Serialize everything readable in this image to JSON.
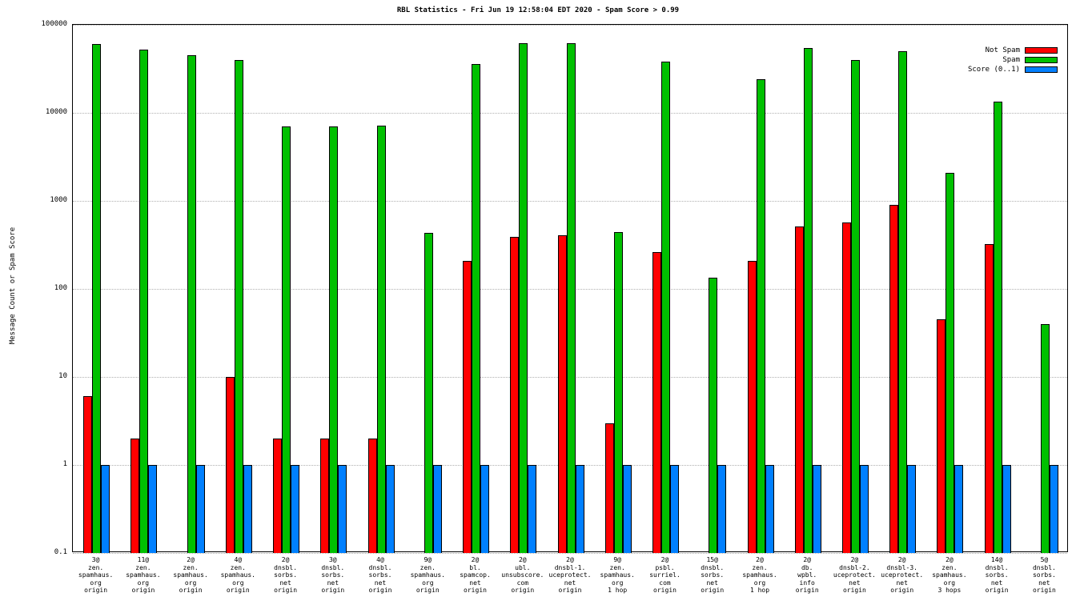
{
  "page": {
    "title": "RBL Statistics - Fri Jun 19 12:58:04 EDT 2020 - Spam Score > 0.99",
    "y_axis_label": "Message Count or Spam Score"
  },
  "chart_data": {
    "type": "bar",
    "title": "RBL Statistics - Fri Jun 19 12:58:04 EDT 2020 - Spam Score > 0.99",
    "xlabel": "",
    "ylabel": "Message Count or Spam Score",
    "y_scale": "log",
    "ylim": [
      0.1,
      100000
    ],
    "yticks": [
      "100000",
      "10000",
      "1000",
      "100",
      "10",
      "1",
      "0.1"
    ],
    "grid": "horizontal-dotted",
    "legend_position": "top-right",
    "categories": [
      [
        "3@",
        "zen.",
        "spamhaus.",
        "org",
        "origin"
      ],
      [
        "11@",
        "zen.",
        "spamhaus.",
        "org",
        "origin"
      ],
      [
        "2@",
        "zen.",
        "spamhaus.",
        "org",
        "origin"
      ],
      [
        "4@",
        "zen.",
        "spamhaus.",
        "org",
        "origin"
      ],
      [
        "2@",
        "dnsbl.",
        "sorbs.",
        "net",
        "origin"
      ],
      [
        "3@",
        "dnsbl.",
        "sorbs.",
        "net",
        "origin"
      ],
      [
        "4@",
        "dnsbl.",
        "sorbs.",
        "net",
        "origin"
      ],
      [
        "9@",
        "zen.",
        "spamhaus.",
        "org",
        "origin"
      ],
      [
        "2@",
        "bl.",
        "spamcop.",
        "net",
        "origin"
      ],
      [
        "2@",
        "ubl.",
        "unsubscore.",
        "com",
        "origin"
      ],
      [
        "2@",
        "dnsbl-1.",
        "uceprotect.",
        "net",
        "origin"
      ],
      [
        "9@",
        "zen.",
        "spamhaus.",
        "org",
        "1 hop"
      ],
      [
        "2@",
        "psbl.",
        "surriel.",
        "com",
        "origin"
      ],
      [
        "15@",
        "dnsbl.",
        "sorbs.",
        "net",
        "origin"
      ],
      [
        "2@",
        "zen.",
        "spamhaus.",
        "org",
        "1 hop"
      ],
      [
        "2@",
        "db.",
        "wpbl.",
        "info",
        "origin"
      ],
      [
        "2@",
        "dnsbl-2.",
        "uceprotect.",
        "net",
        "origin"
      ],
      [
        "2@",
        "dnsbl-3.",
        "uceprotect.",
        "net",
        "origin"
      ],
      [
        "2@",
        "zen.",
        "spamhaus.",
        "org",
        "3 hops"
      ],
      [
        "14@",
        "dnsbl.",
        "sorbs.",
        "net",
        "origin"
      ],
      [
        "5@",
        "dnsbl.",
        "sorbs.",
        "net",
        "origin"
      ]
    ],
    "series": [
      {
        "name": "Not Spam",
        "color": "#ff0000",
        "values": [
          6,
          2,
          null,
          10,
          2,
          2,
          2,
          null,
          210,
          390,
          410,
          3,
          260,
          null,
          210,
          510,
          570,
          900,
          45,
          320,
          null
        ]
      },
      {
        "name": "Spam",
        "color": "#00c000",
        "values": [
          60000,
          52000,
          45000,
          40000,
          7000,
          7000,
          7200,
          430,
          36000,
          62000,
          62000,
          440,
          38000,
          135,
          24000,
          54000,
          40000,
          50000,
          2100,
          13500,
          40
        ]
      },
      {
        "name": "Score (0..1)",
        "color": "#0080ff",
        "values": [
          1,
          1,
          1,
          1,
          1,
          1,
          1,
          1,
          1,
          1,
          1,
          1,
          1,
          1,
          1,
          1,
          1,
          1,
          1,
          1,
          1
        ]
      }
    ]
  }
}
